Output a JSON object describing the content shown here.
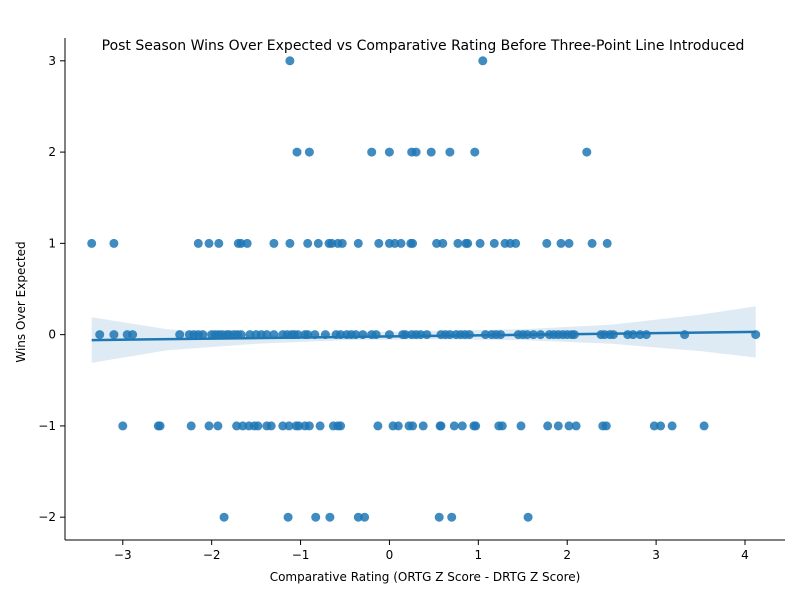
{
  "chart_data": {
    "type": "scatter",
    "title": "Post Season Wins Over Expected vs Comparative Rating Before Three-Point Line Introduced",
    "xlabel": "Comparative Rating (ORTG Z Score - DRTG Z Score)",
    "ylabel": "Wins Over Expected",
    "xlim": [
      -3.65,
      4.45
    ],
    "ylim": [
      -2.25,
      3.25
    ],
    "xticks": [
      -3,
      -2,
      -1,
      0,
      1,
      2,
      3,
      4
    ],
    "yticks": [
      -2,
      -1,
      0,
      1,
      2,
      3
    ],
    "grid": false,
    "point_color": "#1f77b4",
    "regression": {
      "x": [
        -3.35,
        4.12
      ],
      "y": [
        -0.06,
        0.03
      ]
    },
    "confidence_band": {
      "x": [
        -3.35,
        -2.5,
        -1.5,
        -0.5,
        0.4,
        1.5,
        2.5,
        3.5,
        4.12
      ],
      "lower": [
        -0.31,
        -0.17,
        -0.1,
        -0.06,
        -0.05,
        -0.06,
        -0.1,
        -0.18,
        -0.25
      ],
      "upper": [
        0.19,
        0.06,
        -0.01,
        0.02,
        0.04,
        0.06,
        0.11,
        0.22,
        0.31
      ]
    },
    "points": [
      [
        -1.12,
        3
      ],
      [
        1.05,
        3
      ],
      [
        -1.04,
        2
      ],
      [
        -0.9,
        2
      ],
      [
        -0.2,
        2
      ],
      [
        0.0,
        2
      ],
      [
        0.25,
        2
      ],
      [
        0.3,
        2
      ],
      [
        0.47,
        2
      ],
      [
        0.68,
        2
      ],
      [
        0.96,
        2
      ],
      [
        2.22,
        2
      ],
      [
        -3.35,
        1
      ],
      [
        -3.1,
        1
      ],
      [
        -2.15,
        1
      ],
      [
        -2.03,
        1
      ],
      [
        -1.92,
        1
      ],
      [
        -1.7,
        1
      ],
      [
        -1.67,
        1
      ],
      [
        -1.6,
        1
      ],
      [
        -1.3,
        1
      ],
      [
        -1.12,
        1
      ],
      [
        -0.92,
        1
      ],
      [
        -0.8,
        1
      ],
      [
        -0.68,
        1
      ],
      [
        -0.65,
        1
      ],
      [
        -0.58,
        1
      ],
      [
        -0.53,
        1
      ],
      [
        -0.35,
        1
      ],
      [
        -0.12,
        1
      ],
      [
        0.0,
        1
      ],
      [
        0.06,
        1
      ],
      [
        0.13,
        1
      ],
      [
        0.24,
        1
      ],
      [
        0.26,
        1
      ],
      [
        0.53,
        1
      ],
      [
        0.6,
        1
      ],
      [
        0.77,
        1
      ],
      [
        0.86,
        1
      ],
      [
        0.88,
        1
      ],
      [
        1.02,
        1
      ],
      [
        1.18,
        1
      ],
      [
        1.3,
        1
      ],
      [
        1.36,
        1
      ],
      [
        1.42,
        1
      ],
      [
        1.77,
        1
      ],
      [
        1.93,
        1
      ],
      [
        2.02,
        1
      ],
      [
        2.28,
        1
      ],
      [
        2.45,
        1
      ],
      [
        -3.26,
        0
      ],
      [
        -3.1,
        0
      ],
      [
        -2.95,
        0
      ],
      [
        -2.89,
        0
      ],
      [
        -2.36,
        0
      ],
      [
        -2.25,
        0
      ],
      [
        -2.2,
        0
      ],
      [
        -2.15,
        0
      ],
      [
        -2.1,
        0
      ],
      [
        -2.0,
        0
      ],
      [
        -1.96,
        0
      ],
      [
        -1.92,
        0
      ],
      [
        -1.88,
        0
      ],
      [
        -1.83,
        0
      ],
      [
        -1.8,
        0
      ],
      [
        -1.75,
        0
      ],
      [
        -1.71,
        0
      ],
      [
        -1.67,
        0
      ],
      [
        -1.57,
        0
      ],
      [
        -1.5,
        0
      ],
      [
        -1.44,
        0
      ],
      [
        -1.38,
        0
      ],
      [
        -1.3,
        0
      ],
      [
        -1.2,
        0
      ],
      [
        -1.15,
        0
      ],
      [
        -1.1,
        0
      ],
      [
        -1.07,
        0
      ],
      [
        -1.03,
        0
      ],
      [
        -0.95,
        0
      ],
      [
        -0.92,
        0
      ],
      [
        -0.84,
        0
      ],
      [
        -0.72,
        0
      ],
      [
        -0.6,
        0
      ],
      [
        -0.55,
        0
      ],
      [
        -0.48,
        0
      ],
      [
        -0.43,
        0
      ],
      [
        -0.38,
        0
      ],
      [
        -0.3,
        0
      ],
      [
        -0.2,
        0
      ],
      [
        -0.15,
        0
      ],
      [
        0.0,
        0
      ],
      [
        0.15,
        0
      ],
      [
        0.18,
        0
      ],
      [
        0.25,
        0
      ],
      [
        0.3,
        0
      ],
      [
        0.35,
        0
      ],
      [
        0.42,
        0
      ],
      [
        0.58,
        0
      ],
      [
        0.63,
        0
      ],
      [
        0.68,
        0
      ],
      [
        0.75,
        0
      ],
      [
        0.8,
        0
      ],
      [
        0.85,
        0
      ],
      [
        0.9,
        0
      ],
      [
        1.08,
        0
      ],
      [
        1.15,
        0
      ],
      [
        1.2,
        0
      ],
      [
        1.25,
        0
      ],
      [
        1.45,
        0
      ],
      [
        1.5,
        0
      ],
      [
        1.55,
        0
      ],
      [
        1.62,
        0
      ],
      [
        1.7,
        0
      ],
      [
        1.8,
        0
      ],
      [
        1.85,
        0
      ],
      [
        1.9,
        0
      ],
      [
        1.95,
        0
      ],
      [
        2.0,
        0
      ],
      [
        2.05,
        0
      ],
      [
        2.08,
        0
      ],
      [
        2.38,
        0
      ],
      [
        2.42,
        0
      ],
      [
        2.48,
        0
      ],
      [
        2.52,
        0
      ],
      [
        2.68,
        0
      ],
      [
        2.74,
        0
      ],
      [
        2.82,
        0
      ],
      [
        2.89,
        0
      ],
      [
        3.32,
        0
      ],
      [
        4.12,
        0
      ],
      [
        -3.0,
        -1
      ],
      [
        -2.6,
        -1
      ],
      [
        -2.58,
        -1
      ],
      [
        -2.23,
        -1
      ],
      [
        -2.03,
        -1
      ],
      [
        -1.93,
        -1
      ],
      [
        -1.72,
        -1
      ],
      [
        -1.65,
        -1
      ],
      [
        -1.58,
        -1
      ],
      [
        -1.52,
        -1
      ],
      [
        -1.48,
        -1
      ],
      [
        -1.38,
        -1
      ],
      [
        -1.33,
        -1
      ],
      [
        -1.2,
        -1
      ],
      [
        -1.13,
        -1
      ],
      [
        -1.05,
        -1
      ],
      [
        -1.02,
        -1
      ],
      [
        -0.95,
        -1
      ],
      [
        -0.9,
        -1
      ],
      [
        -0.78,
        -1
      ],
      [
        -0.63,
        -1
      ],
      [
        -0.58,
        -1
      ],
      [
        -0.55,
        -1
      ],
      [
        -0.13,
        -1
      ],
      [
        0.04,
        -1
      ],
      [
        0.1,
        -1
      ],
      [
        0.22,
        -1
      ],
      [
        0.26,
        -1
      ],
      [
        0.38,
        -1
      ],
      [
        0.57,
        -1
      ],
      [
        0.58,
        -1
      ],
      [
        0.73,
        -1
      ],
      [
        0.82,
        -1
      ],
      [
        0.95,
        -1
      ],
      [
        0.97,
        -1
      ],
      [
        1.23,
        -1
      ],
      [
        1.27,
        -1
      ],
      [
        1.48,
        -1
      ],
      [
        1.78,
        -1
      ],
      [
        1.9,
        -1
      ],
      [
        2.02,
        -1
      ],
      [
        2.1,
        -1
      ],
      [
        2.4,
        -1
      ],
      [
        2.44,
        -1
      ],
      [
        2.98,
        -1
      ],
      [
        3.05,
        -1
      ],
      [
        3.18,
        -1
      ],
      [
        3.54,
        -1
      ],
      [
        -1.86,
        -2
      ],
      [
        -1.14,
        -2
      ],
      [
        -0.83,
        -2
      ],
      [
        -0.67,
        -2
      ],
      [
        -0.35,
        -2
      ],
      [
        -0.28,
        -2
      ],
      [
        0.56,
        -2
      ],
      [
        0.7,
        -2
      ],
      [
        1.56,
        -2
      ]
    ]
  }
}
